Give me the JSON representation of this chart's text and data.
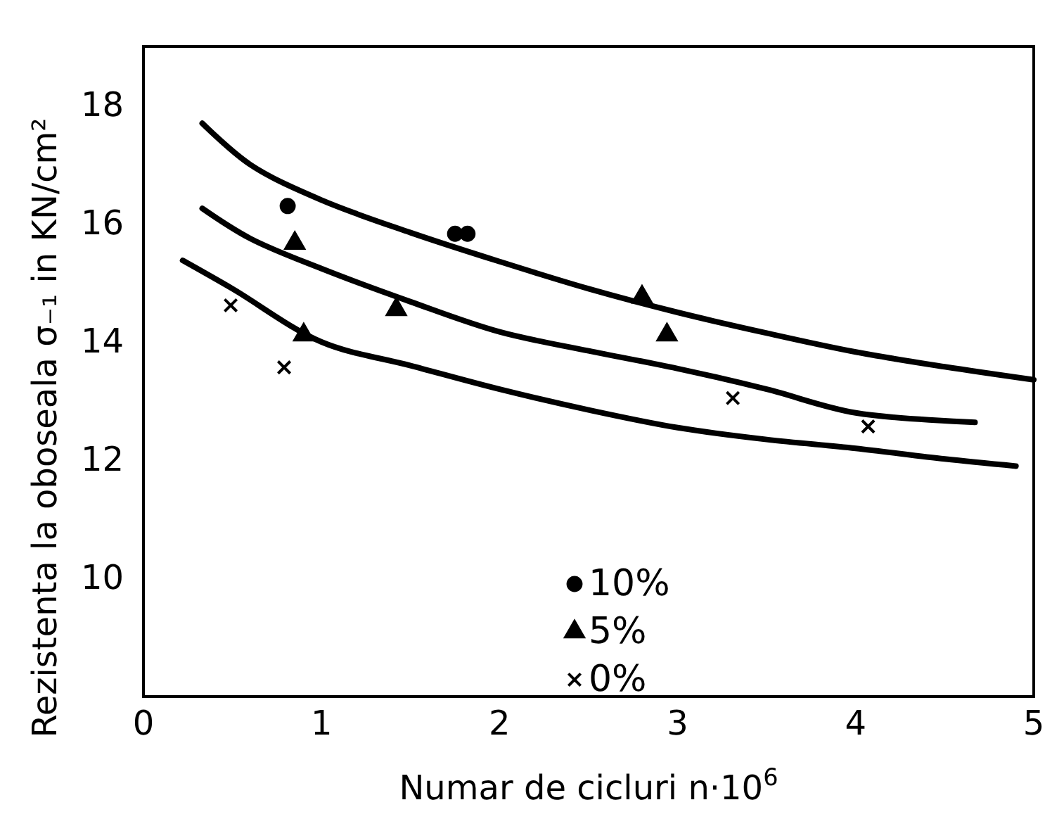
{
  "chart_data": {
    "type": "scatter",
    "xlabel": "Numar de cicluri n·10$^{6}$",
    "ylabel": "Rezistenta la oboseala σ₋₁ in KN/cm²",
    "xlim": [
      0,
      5
    ],
    "xticks": [
      0,
      1,
      2,
      3,
      4,
      5
    ],
    "ylim": [
      8,
      19
    ],
    "yticks": [
      10,
      12,
      14,
      16,
      18
    ],
    "grid": false,
    "legend": "bottom",
    "series": [
      {
        "type": "line",
        "color": "#000000",
        "marker": "none",
        "x": [
          0.33,
          0.6,
          1,
          1.5,
          2,
          2.5,
          3,
          3.5,
          4,
          4.5,
          5
        ],
        "values": [
          17.7,
          17.0,
          16.4,
          15.85,
          15.36,
          14.9,
          14.5,
          14.15,
          13.83,
          13.58,
          13.36
        ]
      },
      {
        "type": "line",
        "color": "#000000",
        "marker": "none",
        "x": [
          0.33,
          0.6,
          1,
          1.5,
          2,
          2.5,
          3,
          3.5,
          4,
          4.67
        ],
        "values": [
          16.26,
          15.75,
          15.24,
          14.68,
          14.17,
          13.85,
          13.55,
          13.2,
          12.8,
          12.64
        ]
      },
      {
        "type": "line",
        "color": "#000000",
        "marker": "none",
        "x": [
          0.22,
          0.5,
          1,
          1.5,
          2,
          2.5,
          3,
          3.5,
          4,
          4.5,
          4.9
        ],
        "values": [
          15.38,
          14.9,
          14.0,
          13.6,
          13.2,
          12.85,
          12.55,
          12.35,
          12.2,
          12.02,
          11.9
        ]
      },
      {
        "type": "scatter",
        "name": "10%",
        "color": "#000000",
        "marker": "circle",
        "x": [
          0.81,
          1.75,
          1.82
        ],
        "values": [
          16.3,
          15.83,
          15.83
        ]
      },
      {
        "type": "scatter",
        "name": "5%",
        "color": "#000000",
        "marker": "triangle",
        "x": [
          0.85,
          0.9,
          1.42,
          2.8,
          2.94
        ],
        "values": [
          15.67,
          14.12,
          14.55,
          14.76,
          14.12
        ]
      },
      {
        "type": "scatter",
        "name": "0%",
        "color": "#000000",
        "marker": "cross",
        "x": [
          0.49,
          0.79,
          3.31,
          4.07
        ],
        "values": [
          14.62,
          13.57,
          13.05,
          12.57
        ]
      }
    ]
  }
}
